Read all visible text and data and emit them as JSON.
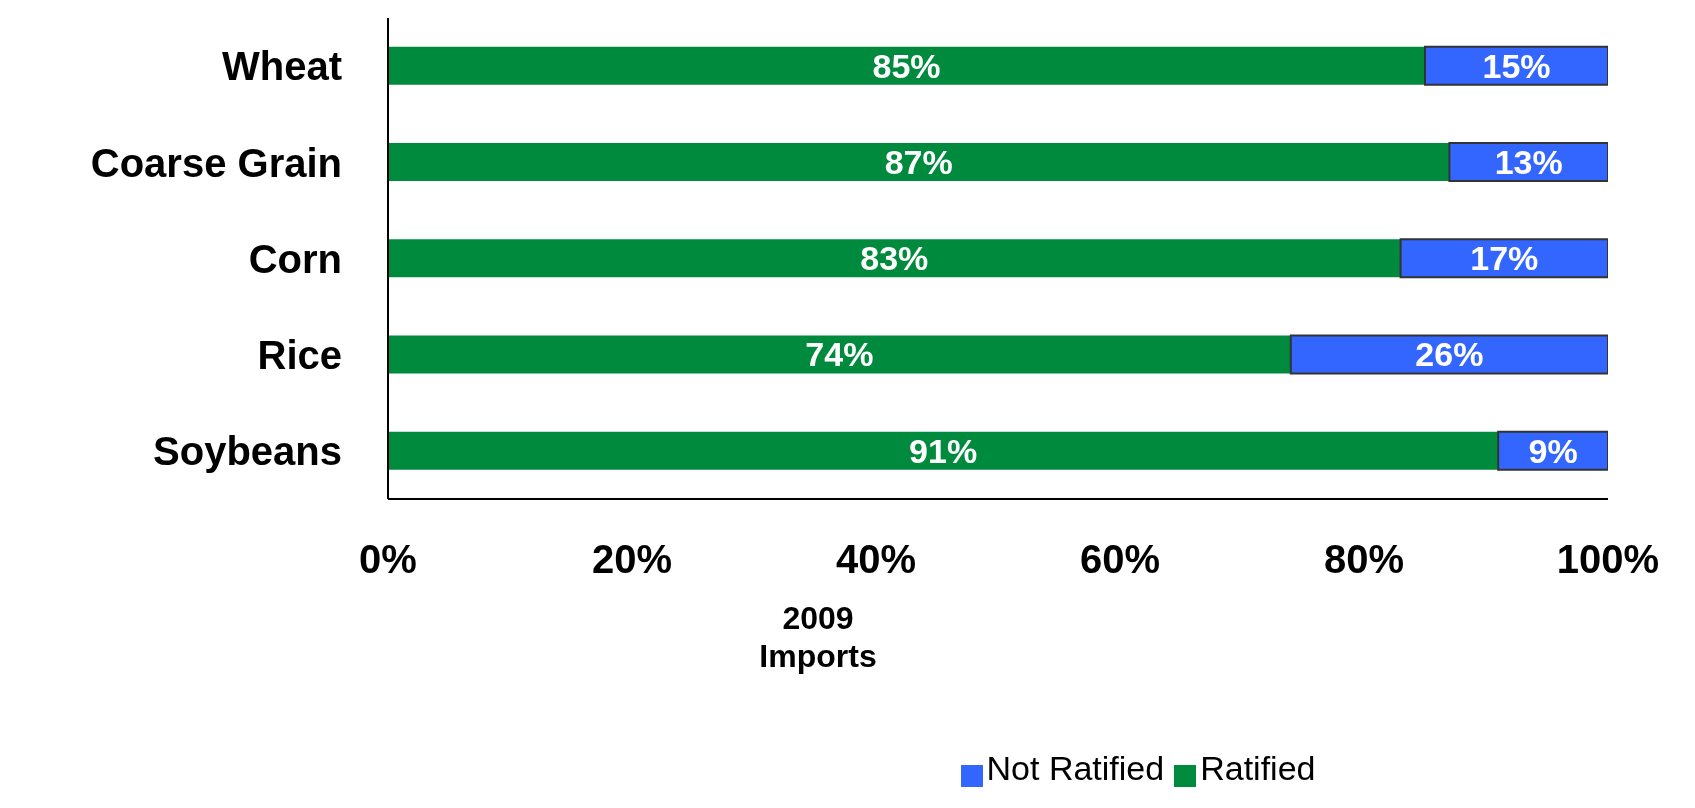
{
  "chart_data": {
    "type": "bar",
    "orientation": "horizontal",
    "stacked": true,
    "xlabel": "2009 Imports",
    "categories": [
      "Wheat",
      "Coarse Grain",
      "Corn",
      "Rice",
      "Soybeans"
    ],
    "series": [
      {
        "name": "Ratified",
        "color": "#008a3e",
        "values": [
          85,
          87,
          83,
          74,
          91
        ],
        "value_labels": [
          "85%",
          "87%",
          "83%",
          "74%",
          "91%"
        ]
      },
      {
        "name": "Not Ratified",
        "color": "#3366ff",
        "values": [
          15,
          13,
          17,
          26,
          9
        ],
        "value_labels": [
          "15%",
          "13%",
          "17%",
          "26%",
          "9%"
        ]
      }
    ],
    "xlim": [
      0,
      100
    ],
    "xticks": [
      {
        "value": 0,
        "label": "0%"
      },
      {
        "value": 20,
        "label": "20%"
      },
      {
        "value": 40,
        "label": "40%"
      },
      {
        "value": 60,
        "label": "60%"
      },
      {
        "value": 80,
        "label": "80%"
      },
      {
        "value": 100,
        "label": "100%"
      }
    ],
    "legend": "bottom"
  }
}
